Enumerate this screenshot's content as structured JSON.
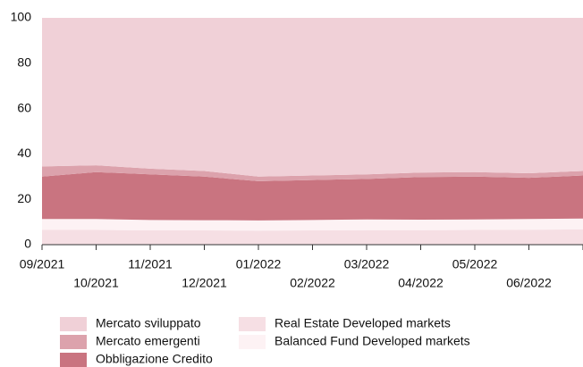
{
  "chart_data": {
    "type": "stacked_area",
    "categories": [
      "09/2021",
      "10/2021",
      "11/2021",
      "12/2021",
      "01/2022",
      "02/2022",
      "03/2022",
      "04/2022",
      "05/2022",
      "06/2022",
      null
    ],
    "series": [
      {
        "name": "Real Estate Developed markets",
        "color": "#f6dfe4",
        "values": [
          6.5,
          6.5,
          6.3,
          6.3,
          6.2,
          6.3,
          6.4,
          6.4,
          6.5,
          6.6,
          6.7
        ]
      },
      {
        "name": "Balanced Fund Developed markets",
        "color": "#fdf2f4",
        "values": [
          4.8,
          4.8,
          4.6,
          4.5,
          4.5,
          4.6,
          4.7,
          4.6,
          4.6,
          4.7,
          4.8
        ]
      },
      {
        "name": "Obbligazione Credito",
        "color": "#c97480",
        "values": [
          18.7,
          20.7,
          20.1,
          19.2,
          17.3,
          17.6,
          17.9,
          18.8,
          18.9,
          18.2,
          19
        ]
      },
      {
        "name": "Mercato emergenti",
        "color": "#dca2ac",
        "values": [
          4.5,
          3,
          2.5,
          2.5,
          2,
          2,
          2,
          2,
          2,
          2,
          2
        ]
      },
      {
        "name": "Mercato sviluppato",
        "color": "#f0d0d7",
        "values": [
          65.5,
          65,
          66.5,
          67.5,
          70,
          69.5,
          69,
          68.2,
          68,
          68.5,
          67.5
        ]
      }
    ],
    "legend_order": [
      4,
      3,
      2,
      0,
      1
    ],
    "ylim": [
      0,
      100
    ],
    "yticks": [
      0,
      20,
      40,
      60,
      80,
      100
    ],
    "grid": false
  }
}
